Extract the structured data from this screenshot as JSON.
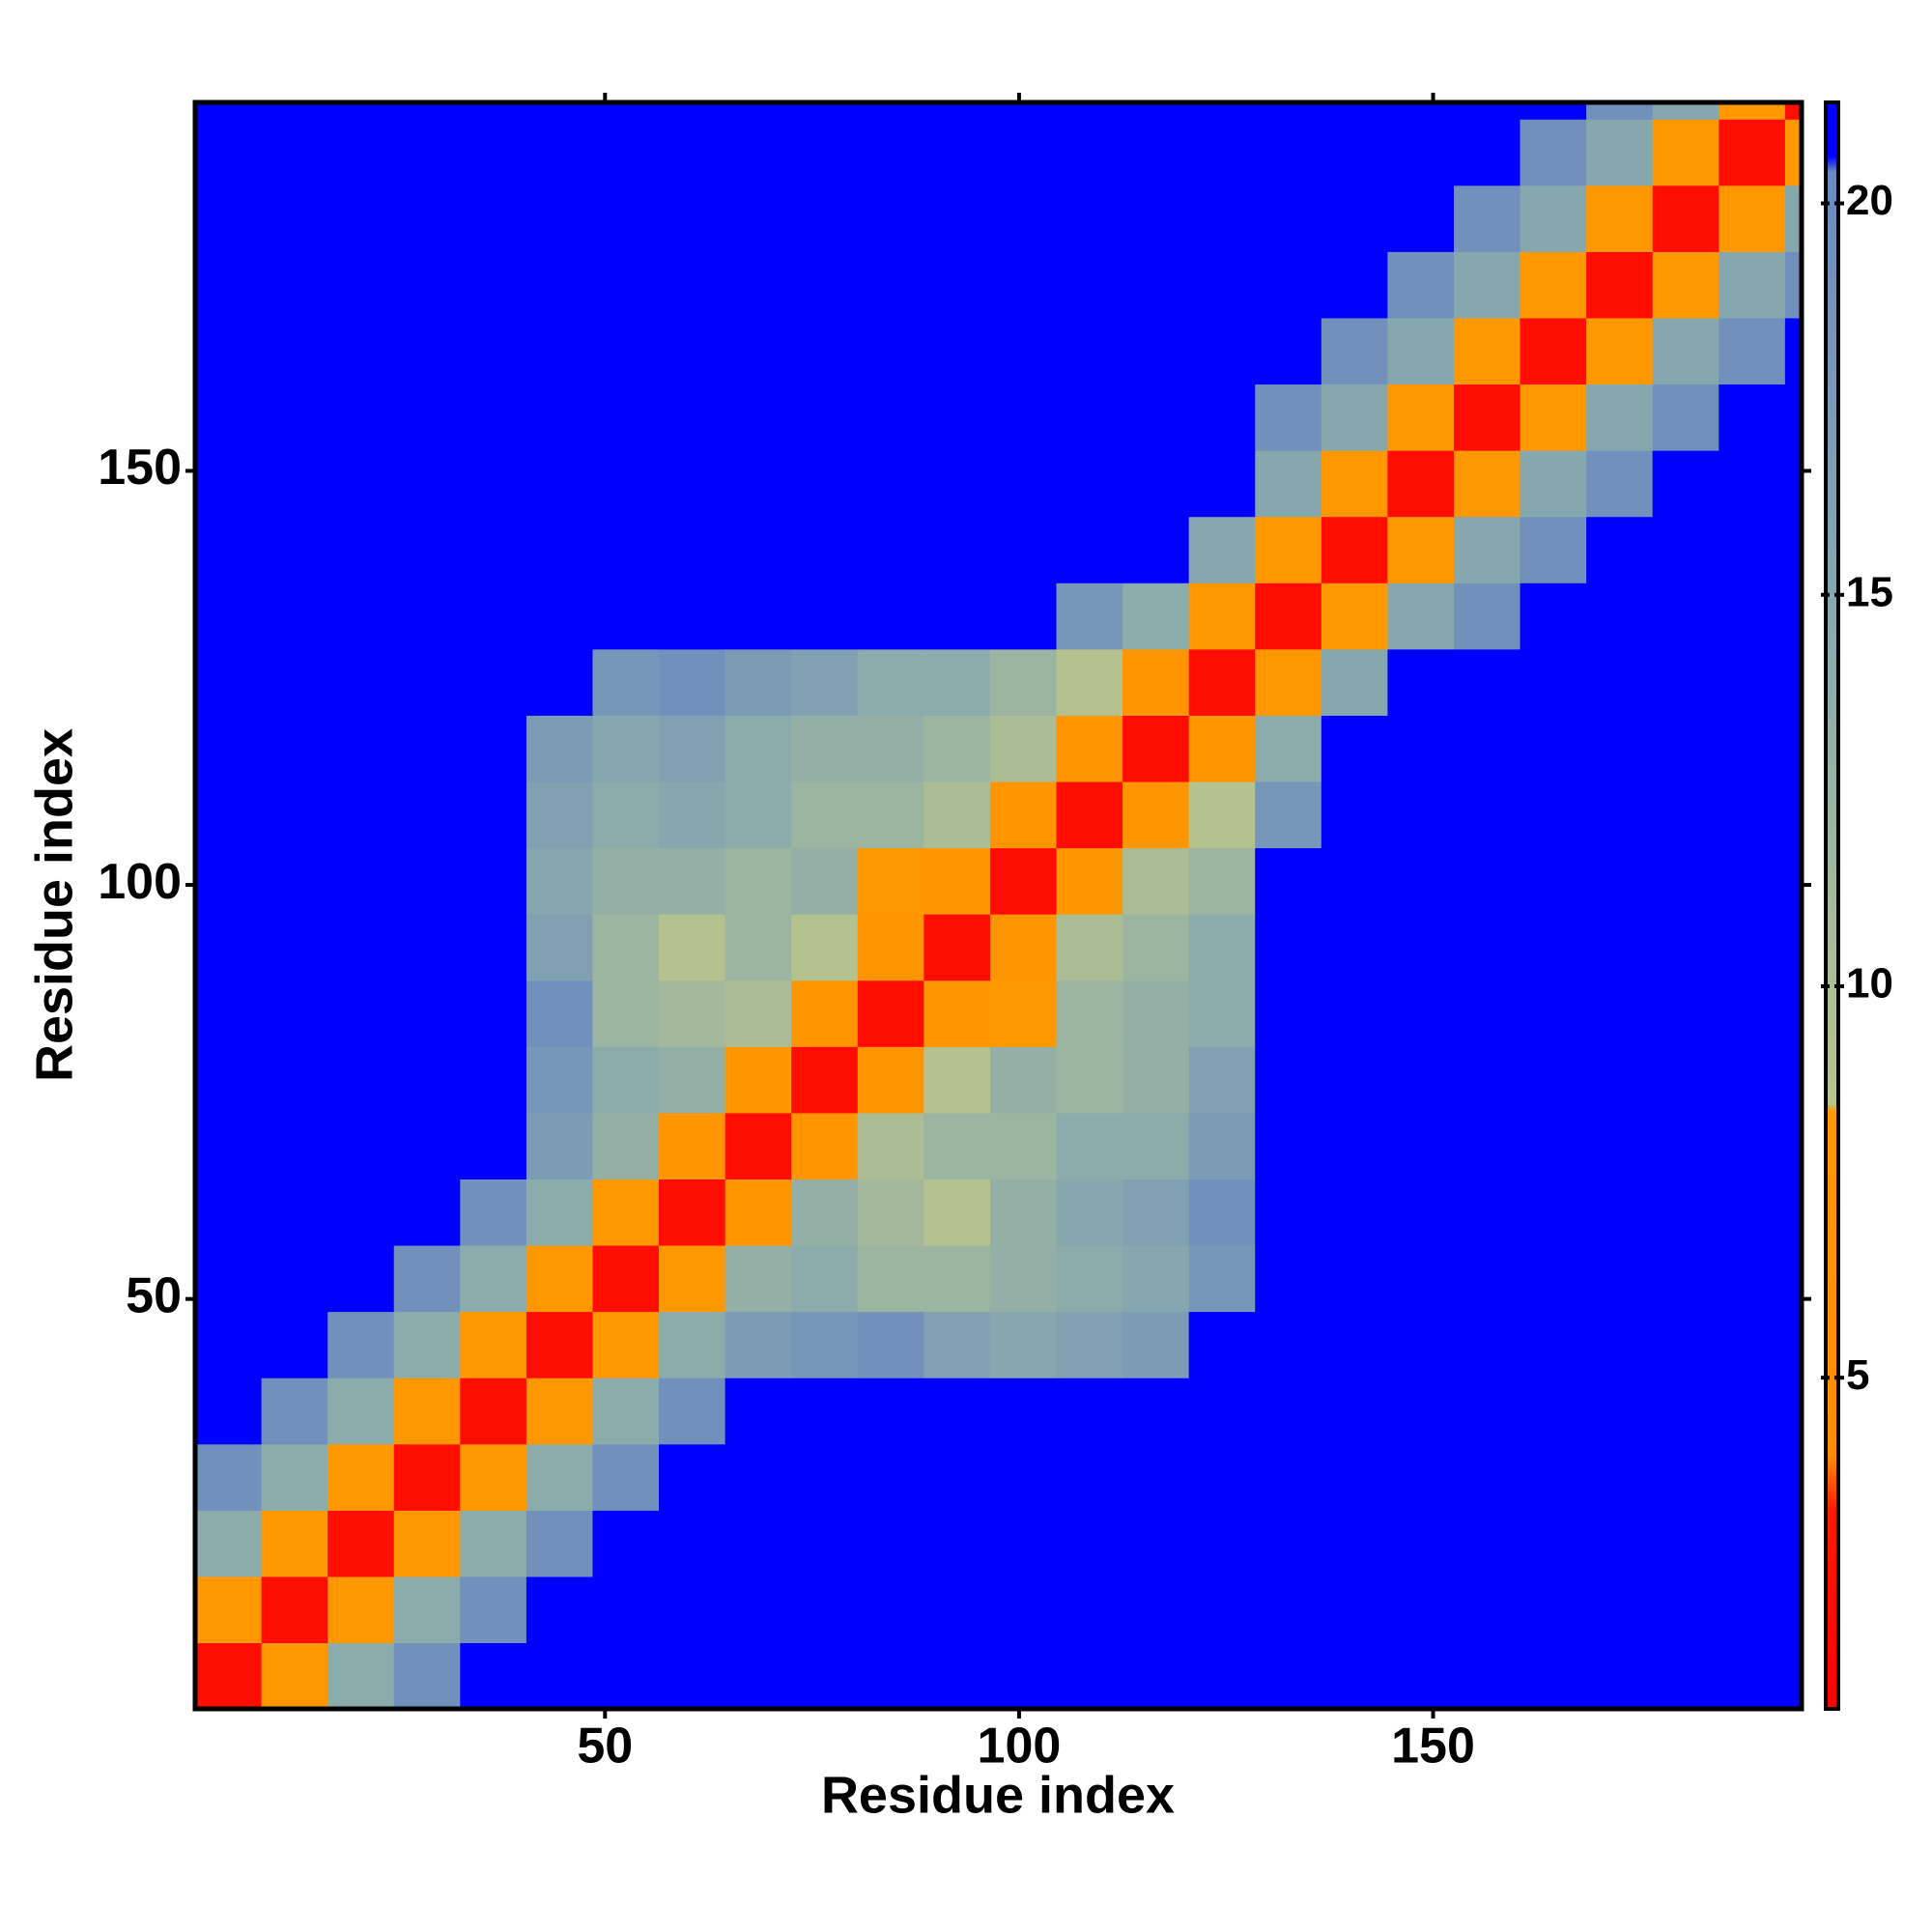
{
  "chart_data": {
    "type": "heatmap",
    "xlabel": "Residue index",
    "ylabel": "Residue index",
    "xlim": [
      0.5,
      194.5
    ],
    "ylim": [
      0.5,
      194.5
    ],
    "xticks": [
      50,
      100,
      150
    ],
    "yticks": [
      50,
      100,
      150
    ],
    "zlim": [
      0.77,
      21.29
    ],
    "zticks": [
      5,
      10,
      15,
      20
    ],
    "color_stops": [
      {
        "value": 0.77,
        "color": "#ff0000"
      },
      {
        "value": 3.3,
        "color": "#ff1a00"
      },
      {
        "value": 4.0,
        "color": "#ff8c00"
      },
      {
        "value": 8.4,
        "color": "#ff9900"
      },
      {
        "value": 8.5,
        "color": "#b8c48c"
      },
      {
        "value": 14,
        "color": "#8cacac"
      },
      {
        "value": 20.4,
        "color": "#6a8ac0"
      },
      {
        "value": 20.6,
        "color": "#0000ff"
      },
      {
        "value": 21.29,
        "color": "#0000ff"
      }
    ],
    "x_edges": [
      0.5,
      8.5,
      16.5,
      24.5,
      32.5,
      40.5,
      48.5,
      56.5,
      64.5,
      72.5,
      80.5,
      88.5,
      96.5,
      104.5,
      112.5,
      120.5,
      128.5,
      136.5,
      144.5,
      152.5,
      160.5,
      168.5,
      176.5,
      184.5,
      192.5,
      194.5
    ],
    "y_edges": [
      0.5,
      8.5,
      16.5,
      24.5,
      32.5,
      40.5,
      48.5,
      56.5,
      64.5,
      72.5,
      80.5,
      88.5,
      96.5,
      104.5,
      112.5,
      120.5,
      128.5,
      136.5,
      144.5,
      152.5,
      160.5,
      168.5,
      176.5,
      184.5,
      192.5,
      194.5
    ],
    "z": [
      [
        2,
        8,
        14,
        19,
        21,
        21,
        21,
        21,
        21,
        21,
        21,
        21,
        21,
        21,
        21,
        21,
        21,
        21,
        21,
        21,
        21,
        21,
        21,
        21,
        21
      ],
      [
        8,
        2,
        8,
        14,
        19,
        21,
        21,
        21,
        21,
        21,
        21,
        21,
        21,
        21,
        21,
        21,
        21,
        21,
        21,
        21,
        21,
        21,
        21,
        21,
        21
      ],
      [
        14,
        8,
        2,
        8,
        14,
        19,
        21,
        21,
        21,
        21,
        21,
        21,
        21,
        21,
        21,
        21,
        21,
        21,
        21,
        21,
        21,
        21,
        21,
        21,
        21
      ],
      [
        19,
        14,
        8,
        2,
        8,
        14,
        19,
        21,
        21,
        21,
        21,
        21,
        21,
        21,
        21,
        21,
        21,
        21,
        21,
        21,
        21,
        21,
        21,
        21,
        21
      ],
      [
        21,
        19,
        14,
        8,
        2,
        8,
        14,
        19,
        21,
        21,
        21,
        21,
        21,
        21,
        21,
        21,
        21,
        21,
        21,
        21,
        21,
        21,
        21,
        21,
        21
      ],
      [
        21,
        21,
        19,
        14,
        8,
        2,
        8,
        14,
        17,
        18,
        19,
        16,
        15,
        16,
        17,
        21,
        21,
        21,
        21,
        21,
        21,
        21,
        21,
        21,
        21
      ],
      [
        21,
        21,
        21,
        19,
        14,
        8,
        2,
        8,
        13,
        14,
        12,
        12,
        13,
        14,
        15,
        18,
        21,
        21,
        21,
        21,
        21,
        21,
        21,
        21,
        21
      ],
      [
        21,
        21,
        21,
        21,
        19,
        14,
        8,
        2,
        7,
        13,
        11,
        9,
        13,
        15,
        16,
        19,
        21,
        21,
        21,
        21,
        21,
        21,
        21,
        21,
        21
      ],
      [
        21,
        21,
        21,
        21,
        21,
        17,
        13,
        7,
        2,
        7,
        10,
        12,
        12,
        14,
        14,
        17,
        21,
        21,
        21,
        21,
        21,
        21,
        21,
        21,
        21
      ],
      [
        21,
        21,
        21,
        21,
        21,
        18,
        14,
        13,
        7,
        2,
        7,
        9,
        13,
        12,
        13,
        16,
        21,
        21,
        21,
        21,
        21,
        21,
        21,
        21,
        21
      ],
      [
        21,
        21,
        21,
        21,
        21,
        19,
        12,
        11,
        10,
        7,
        2,
        7,
        8,
        12,
        13,
        14,
        21,
        21,
        21,
        21,
        21,
        21,
        21,
        21,
        21
      ],
      [
        21,
        21,
        21,
        21,
        21,
        16,
        12,
        9,
        12,
        9,
        7,
        2,
        7,
        10,
        12,
        14,
        21,
        21,
        21,
        21,
        21,
        21,
        21,
        21,
        21
      ],
      [
        21,
        21,
        21,
        21,
        21,
        15,
        13,
        13,
        12,
        13,
        8,
        7,
        2,
        7,
        10,
        12,
        21,
        21,
        21,
        21,
        21,
        21,
        21,
        21,
        21
      ],
      [
        21,
        21,
        21,
        21,
        21,
        16,
        14,
        15,
        14,
        12,
        12,
        10,
        7,
        2,
        7,
        9,
        18,
        21,
        21,
        21,
        21,
        21,
        21,
        21,
        21
      ],
      [
        21,
        21,
        21,
        21,
        21,
        17,
        15,
        16,
        14,
        13,
        13,
        12,
        10,
        7,
        2,
        7,
        14,
        21,
        21,
        21,
        21,
        21,
        21,
        21,
        21
      ],
      [
        21,
        21,
        21,
        21,
        21,
        21,
        18,
        19,
        17,
        16,
        14,
        14,
        12,
        9,
        7,
        2,
        8,
        15,
        21,
        21,
        21,
        21,
        21,
        21,
        21
      ],
      [
        21,
        21,
        21,
        21,
        21,
        21,
        21,
        21,
        21,
        21,
        21,
        21,
        21,
        18,
        14,
        8,
        2,
        8,
        15,
        19,
        21,
        21,
        21,
        21,
        21
      ],
      [
        21,
        21,
        21,
        21,
        21,
        21,
        21,
        21,
        21,
        21,
        21,
        21,
        21,
        21,
        21,
        15,
        8,
        2,
        8,
        15,
        19,
        21,
        21,
        21,
        21
      ],
      [
        21,
        21,
        21,
        21,
        21,
        21,
        21,
        21,
        21,
        21,
        21,
        21,
        21,
        21,
        21,
        21,
        15,
        8,
        2,
        8,
        15,
        19,
        21,
        21,
        21
      ],
      [
        21,
        21,
        21,
        21,
        21,
        21,
        21,
        21,
        21,
        21,
        21,
        21,
        21,
        21,
        21,
        21,
        19,
        15,
        8,
        2,
        8,
        15,
        19,
        21,
        21
      ],
      [
        21,
        21,
        21,
        21,
        21,
        21,
        21,
        21,
        21,
        21,
        21,
        21,
        21,
        21,
        21,
        21,
        21,
        19,
        15,
        8,
        2,
        8,
        15,
        19,
        21
      ],
      [
        21,
        21,
        21,
        21,
        21,
        21,
        21,
        21,
        21,
        21,
        21,
        21,
        21,
        21,
        21,
        21,
        21,
        21,
        19,
        15,
        8,
        2,
        8,
        15,
        19
      ],
      [
        21,
        21,
        21,
        21,
        21,
        21,
        21,
        21,
        21,
        21,
        21,
        21,
        21,
        21,
        21,
        21,
        21,
        21,
        21,
        19,
        15,
        8,
        2,
        8,
        15
      ],
      [
        21,
        21,
        21,
        21,
        21,
        21,
        21,
        21,
        21,
        21,
        21,
        21,
        21,
        21,
        21,
        21,
        21,
        21,
        21,
        21,
        19,
        15,
        8,
        2,
        8
      ],
      [
        21,
        21,
        21,
        21,
        21,
        21,
        21,
        21,
        21,
        21,
        21,
        21,
        21,
        21,
        21,
        21,
        21,
        21,
        21,
        21,
        21,
        19,
        15,
        8,
        2
      ]
    ]
  }
}
